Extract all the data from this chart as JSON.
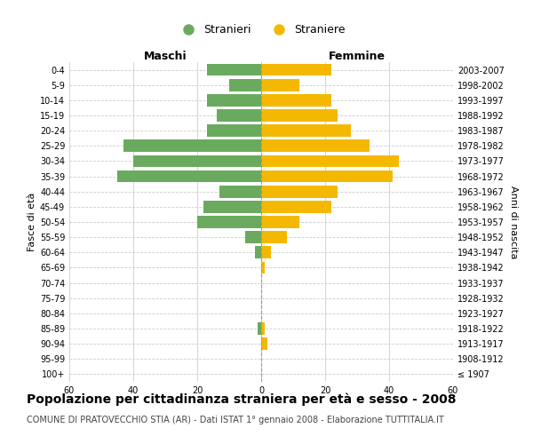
{
  "age_groups": [
    "100+",
    "95-99",
    "90-94",
    "85-89",
    "80-84",
    "75-79",
    "70-74",
    "65-69",
    "60-64",
    "55-59",
    "50-54",
    "45-49",
    "40-44",
    "35-39",
    "30-34",
    "25-29",
    "20-24",
    "15-19",
    "10-14",
    "5-9",
    "0-4"
  ],
  "birth_years": [
    "≤ 1907",
    "1908-1912",
    "1913-1917",
    "1918-1922",
    "1923-1927",
    "1928-1932",
    "1933-1937",
    "1938-1942",
    "1943-1947",
    "1948-1952",
    "1953-1957",
    "1958-1962",
    "1963-1967",
    "1968-1972",
    "1973-1977",
    "1978-1982",
    "1983-1987",
    "1988-1992",
    "1993-1997",
    "1998-2002",
    "2003-2007"
  ],
  "males": [
    0,
    0,
    0,
    1,
    0,
    0,
    0,
    0,
    2,
    5,
    20,
    18,
    13,
    45,
    40,
    43,
    17,
    14,
    17,
    10,
    17
  ],
  "females": [
    0,
    0,
    2,
    1,
    0,
    0,
    0,
    1,
    3,
    8,
    12,
    22,
    24,
    41,
    43,
    34,
    28,
    24,
    22,
    12,
    22
  ],
  "male_color": "#6aaa5e",
  "female_color": "#f5b800",
  "background_color": "#ffffff",
  "grid_color": "#cccccc",
  "title": "Popolazione per cittadinanza straniera per età e sesso - 2008",
  "subtitle": "COMUNE DI PRATOVECCHIO STIA (AR) - Dati ISTAT 1° gennaio 2008 - Elaborazione TUTTITALIA.IT",
  "legend_male": "Stranieri",
  "legend_female": "Straniere",
  "label_maschi": "Maschi",
  "label_femmine": "Femmine",
  "ylabel_left": "Fasce di età",
  "ylabel_right": "Anni di nascita",
  "xlim": 60,
  "center_line_color": "#999999",
  "bar_height": 0.8,
  "tick_fontsize": 7,
  "label_fontsize": 9,
  "title_fontsize": 10,
  "subtitle_fontsize": 7
}
